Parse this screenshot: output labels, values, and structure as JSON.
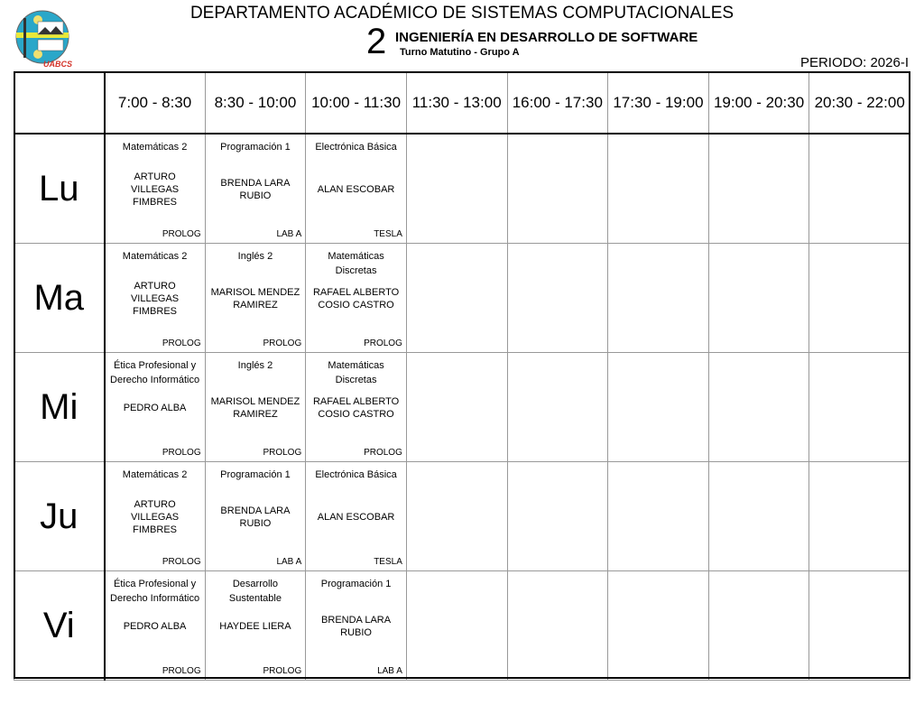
{
  "header": {
    "title": "DEPARTAMENTO ACADÉMICO DE SISTEMAS COMPUTACIONALES",
    "semester": "2",
    "program": "INGENIERÍA EN DESARROLLO DE SOFTWARE",
    "shift_group": "Turno Matutino - Grupo A",
    "periodo": "PERIODO: 2026-I",
    "logo_text": "UABCS"
  },
  "times": [
    "7:00 - 8:30",
    "8:30 - 10:00",
    "10:00 - 11:30",
    "11:30 - 13:00",
    "16:00 - 17:30",
    "17:30 - 19:00",
    "19:00 - 20:30",
    "20:30 - 22:00"
  ],
  "days": [
    {
      "label": "Lu",
      "classes": [
        {
          "subject": "Matemáticas 2",
          "teacher": "ARTURO VILLEGAS FIMBRES",
          "room": "PROLOG"
        },
        {
          "subject": "Programación 1",
          "teacher": "BRENDA LARA RUBIO",
          "room": "LAB A"
        },
        {
          "subject": "Electrónica Básica",
          "teacher": "ALAN ESCOBAR",
          "room": "TESLA"
        }
      ]
    },
    {
      "label": "Ma",
      "classes": [
        {
          "subject": "Matemáticas 2",
          "teacher": "ARTURO VILLEGAS FIMBRES",
          "room": "PROLOG"
        },
        {
          "subject": "Inglés 2",
          "teacher": "MARISOL MENDEZ RAMIREZ",
          "room": "PROLOG"
        },
        {
          "subject": "Matemáticas Discretas",
          "teacher": "RAFAEL ALBERTO COSIO CASTRO",
          "room": "PROLOG"
        }
      ]
    },
    {
      "label": "Mi",
      "classes": [
        {
          "subject": "Ética Profesional y Derecho Informático",
          "teacher": "PEDRO ALBA",
          "room": "PROLOG"
        },
        {
          "subject": "Inglés 2",
          "teacher": "MARISOL MENDEZ RAMIREZ",
          "room": "PROLOG"
        },
        {
          "subject": "Matemáticas Discretas",
          "teacher": "RAFAEL ALBERTO COSIO CASTRO",
          "room": "PROLOG"
        }
      ]
    },
    {
      "label": "Ju",
      "classes": [
        {
          "subject": "Matemáticas 2",
          "teacher": "ARTURO VILLEGAS FIMBRES",
          "room": "PROLOG"
        },
        {
          "subject": "Programación 1",
          "teacher": "BRENDA LARA RUBIO",
          "room": "LAB A"
        },
        {
          "subject": "Electrónica Básica",
          "teacher": "ALAN ESCOBAR",
          "room": "TESLA"
        }
      ]
    },
    {
      "label": "Vi",
      "classes": [
        {
          "subject": "Ética Profesional y Derecho Informático",
          "teacher": "PEDRO ALBA",
          "room": "PROLOG"
        },
        {
          "subject": "Desarrollo Sustentable",
          "teacher": "HAYDEE LIERA",
          "room": "PROLOG"
        },
        {
          "subject": "Programación 1",
          "teacher": "BRENDA LARA RUBIO",
          "room": "LAB A"
        }
      ]
    }
  ]
}
